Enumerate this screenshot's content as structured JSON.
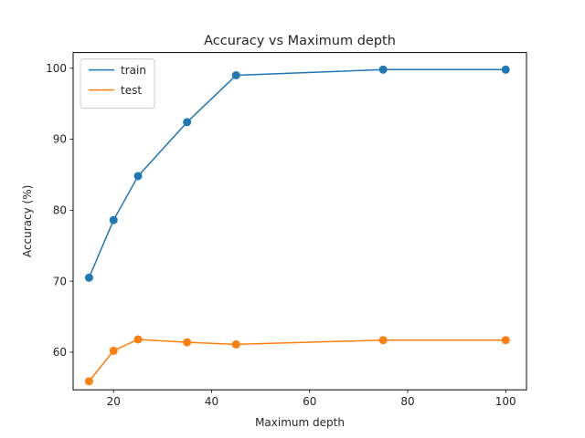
{
  "chart_data": {
    "type": "line",
    "title": "Accuracy vs Maximum depth",
    "xlabel": "Maximum depth",
    "ylabel": "Accuracy (%)",
    "xlim": [
      11.75,
      104.25
    ],
    "ylim": [
      54.7,
      102.2
    ],
    "xticks": [
      20,
      40,
      60,
      80,
      100
    ],
    "yticks": [
      60,
      70,
      80,
      90,
      100
    ],
    "grid": false,
    "legend_position": "upper-left",
    "x": [
      15,
      20,
      25,
      35,
      45,
      75,
      100
    ],
    "series": [
      {
        "name": "train",
        "color": "#1f77b4",
        "values": [
          70.5,
          78.6,
          84.8,
          92.4,
          99.0,
          99.8,
          99.8
        ]
      },
      {
        "name": "test",
        "color": "#ff7f0e",
        "values": [
          55.9,
          60.2,
          61.8,
          61.4,
          61.1,
          61.7,
          61.7
        ]
      }
    ]
  }
}
